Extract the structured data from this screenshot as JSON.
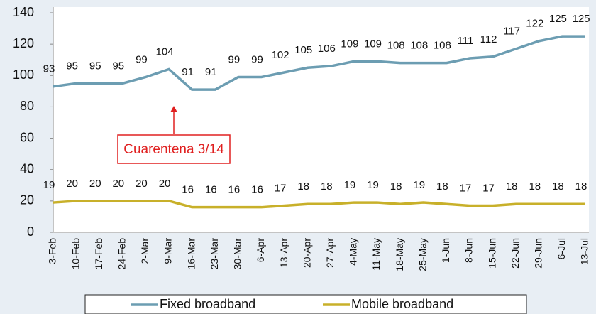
{
  "chart_data": {
    "type": "line",
    "categories": [
      "3-Feb",
      "10-Feb",
      "17-Feb",
      "24-Feb",
      "2-Mar",
      "9-Mar",
      "16-Mar",
      "23-Mar",
      "30-Mar",
      "6-Apr",
      "13-Apr",
      "20-Apr",
      "27-Apr",
      "4-May",
      "11-May",
      "18-May",
      "25-May",
      "1-Jun",
      "8-Jun",
      "15-Jun",
      "22-Jun",
      "29-Jun",
      "6-Jul",
      "13-Jul"
    ],
    "series": [
      {
        "name": "Fixed broadband",
        "color": "#6c9db2",
        "values": [
          93,
          95,
          95,
          95,
          99,
          104,
          91,
          91,
          99,
          99,
          102,
          105,
          106,
          109,
          109,
          108,
          108,
          108,
          111,
          112,
          117,
          122,
          125,
          125
        ]
      },
      {
        "name": "Mobile broadband",
        "color": "#c8b02a",
        "values": [
          19,
          20,
          20,
          20,
          20,
          20,
          16,
          16,
          16,
          16,
          17,
          18,
          18,
          19,
          19,
          18,
          19,
          18,
          17,
          17,
          18,
          18,
          18,
          18
        ]
      }
    ],
    "ylim": [
      0,
      140
    ],
    "yticks": [
      0,
      20,
      40,
      60,
      80,
      100,
      120,
      140
    ],
    "annotation": "Cuarentena 3/14",
    "legend": "bottom"
  }
}
